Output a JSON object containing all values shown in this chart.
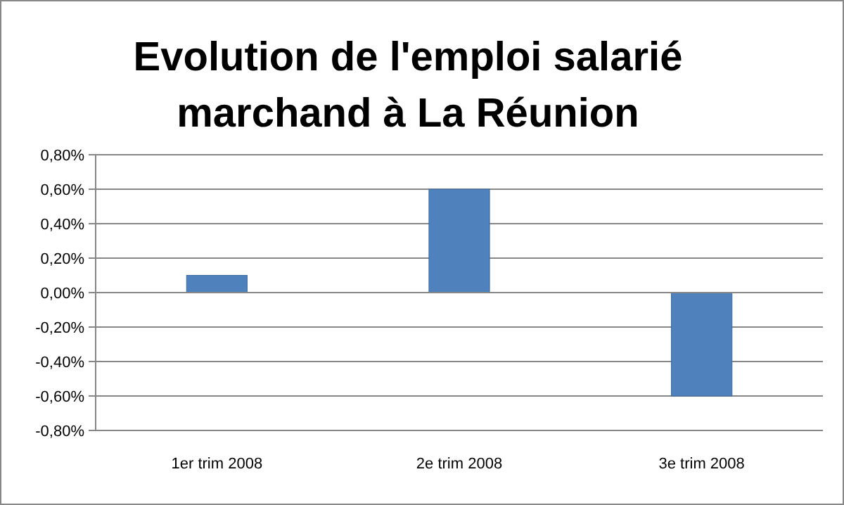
{
  "chart_data": {
    "type": "bar",
    "title": "Evolution de l'emploi salarié\nmarchand à La Réunion",
    "categories": [
      "1er trim 2008",
      "2e trim 2008",
      "3e trim 2008"
    ],
    "values": [
      0.1,
      0.6,
      -0.6
    ],
    "color": "#4f81bd",
    "ylim": [
      -0.8,
      0.8
    ],
    "yticks": [
      {
        "value": -0.8,
        "label": "-0,80%"
      },
      {
        "value": -0.6,
        "label": "-0,60%"
      },
      {
        "value": -0.4,
        "label": "-0,40%"
      },
      {
        "value": -0.2,
        "label": "-0,20%"
      },
      {
        "value": 0,
        "label": "0,00%"
      },
      {
        "value": 0.2,
        "label": "0,20%"
      },
      {
        "value": 0.4,
        "label": "0,40%"
      },
      {
        "value": 0.6,
        "label": "0,60%"
      },
      {
        "value": 0.8,
        "label": "0,80%"
      }
    ],
    "grid": "y"
  }
}
